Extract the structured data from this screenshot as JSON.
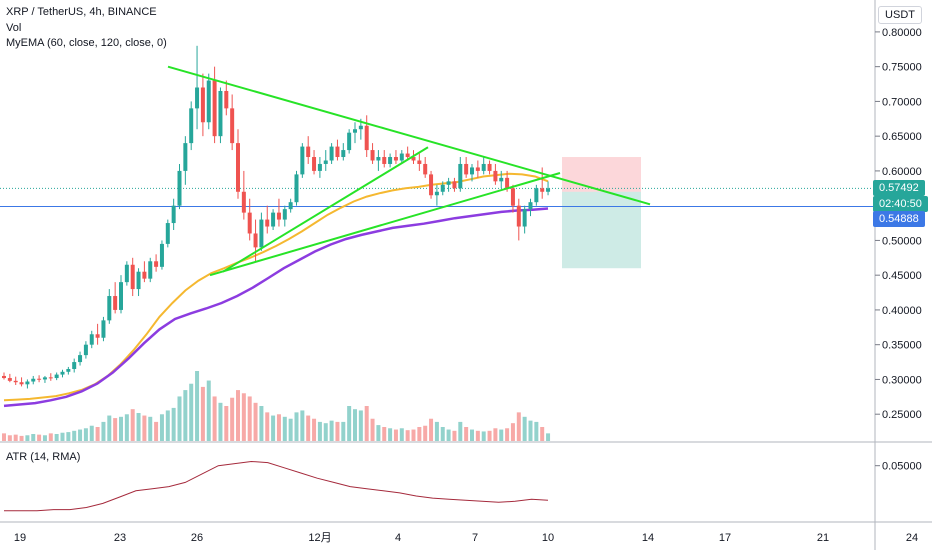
{
  "header": {
    "symbol_line": "XRP / TetherUS, 4h, BINANCE",
    "vol_label": "Vol",
    "ema_label": "MyEMA (60, close, 120, close, 0)",
    "atr_label": "ATR (14, RMA)",
    "currency": "USDT"
  },
  "price_tags": {
    "last": "0.57492",
    "countdown": "02:40:50",
    "level": "0.54888"
  },
  "colors": {
    "up": "#26a69a",
    "down": "#ef5350",
    "ema60": "#f5b830",
    "ema120": "#8c3ce0",
    "trend": "#27e327",
    "atr": "#a52a3c",
    "level_line": "#3c78e6"
  },
  "chart_data": [
    {
      "type": "candlestick",
      "title": "XRP / TetherUS, 4h, BINANCE",
      "x_ticks": [
        "19",
        "23",
        "26",
        "12月",
        "4",
        "7",
        "10",
        "14",
        "17",
        "21",
        "24"
      ],
      "y_ticks": [
        "0.80000",
        "0.75000",
        "0.70000",
        "0.65000",
        "0.60000",
        "0.55000",
        "0.50000",
        "0.45000",
        "0.40000",
        "0.35000",
        "0.30000",
        "0.25000"
      ],
      "ylim": [
        0.21,
        0.82
      ],
      "candles": [
        [
          0.305,
          0.31,
          0.3,
          0.302
        ],
        [
          0.302,
          0.308,
          0.296,
          0.298
        ],
        [
          0.298,
          0.304,
          0.292,
          0.296
        ],
        [
          0.296,
          0.303,
          0.29,
          0.293
        ],
        [
          0.293,
          0.3,
          0.287,
          0.297
        ],
        [
          0.297,
          0.305,
          0.293,
          0.301
        ],
        [
          0.301,
          0.306,
          0.296,
          0.3
        ],
        [
          0.3,
          0.305,
          0.295,
          0.303
        ],
        [
          0.303,
          0.309,
          0.298,
          0.302
        ],
        [
          0.302,
          0.31,
          0.299,
          0.307
        ],
        [
          0.307,
          0.314,
          0.303,
          0.311
        ],
        [
          0.311,
          0.318,
          0.307,
          0.315
        ],
        [
          0.315,
          0.33,
          0.31,
          0.325
        ],
        [
          0.325,
          0.34,
          0.32,
          0.335
        ],
        [
          0.335,
          0.355,
          0.33,
          0.35
        ],
        [
          0.35,
          0.37,
          0.345,
          0.365
        ],
        [
          0.365,
          0.38,
          0.35,
          0.36
        ],
        [
          0.36,
          0.39,
          0.355,
          0.385
        ],
        [
          0.385,
          0.43,
          0.38,
          0.42
        ],
        [
          0.42,
          0.44,
          0.395,
          0.4
        ],
        [
          0.4,
          0.45,
          0.395,
          0.44
        ],
        [
          0.44,
          0.47,
          0.435,
          0.465
        ],
        [
          0.465,
          0.475,
          0.42,
          0.43
        ],
        [
          0.43,
          0.46,
          0.42,
          0.455
        ],
        [
          0.455,
          0.47,
          0.44,
          0.445
        ],
        [
          0.445,
          0.475,
          0.44,
          0.47
        ],
        [
          0.47,
          0.48,
          0.455,
          0.462
        ],
        [
          0.462,
          0.5,
          0.458,
          0.495
        ],
        [
          0.495,
          0.53,
          0.49,
          0.525
        ],
        [
          0.525,
          0.56,
          0.515,
          0.55
        ],
        [
          0.55,
          0.61,
          0.545,
          0.6
        ],
        [
          0.6,
          0.65,
          0.58,
          0.64
        ],
        [
          0.64,
          0.7,
          0.63,
          0.69
        ],
        [
          0.69,
          0.78,
          0.66,
          0.72
        ],
        [
          0.72,
          0.74,
          0.65,
          0.67
        ],
        [
          0.67,
          0.74,
          0.66,
          0.73
        ],
        [
          0.73,
          0.75,
          0.64,
          0.65
        ],
        [
          0.65,
          0.72,
          0.64,
          0.715
        ],
        [
          0.715,
          0.73,
          0.68,
          0.69
        ],
        [
          0.69,
          0.71,
          0.63,
          0.64
        ],
        [
          0.64,
          0.66,
          0.56,
          0.57
        ],
        [
          0.57,
          0.6,
          0.53,
          0.54
        ],
        [
          0.54,
          0.56,
          0.5,
          0.51
        ],
        [
          0.51,
          0.53,
          0.47,
          0.49
        ],
        [
          0.49,
          0.54,
          0.485,
          0.53
        ],
        [
          0.53,
          0.55,
          0.51,
          0.52
        ],
        [
          0.52,
          0.545,
          0.515,
          0.54
        ],
        [
          0.54,
          0.56,
          0.52,
          0.53
        ],
        [
          0.53,
          0.55,
          0.52,
          0.545
        ],
        [
          0.545,
          0.56,
          0.54,
          0.555
        ],
        [
          0.555,
          0.6,
          0.55,
          0.595
        ],
        [
          0.595,
          0.64,
          0.59,
          0.635
        ],
        [
          0.635,
          0.65,
          0.61,
          0.62
        ],
        [
          0.62,
          0.63,
          0.595,
          0.6
        ],
        [
          0.6,
          0.62,
          0.59,
          0.61
        ],
        [
          0.61,
          0.63,
          0.6,
          0.615
        ],
        [
          0.615,
          0.64,
          0.61,
          0.635
        ],
        [
          0.635,
          0.645,
          0.615,
          0.62
        ],
        [
          0.62,
          0.64,
          0.615,
          0.63
        ],
        [
          0.63,
          0.66,
          0.625,
          0.655
        ],
        [
          0.655,
          0.67,
          0.64,
          0.66
        ],
        [
          0.66,
          0.675,
          0.645,
          0.665
        ],
        [
          0.665,
          0.68,
          0.62,
          0.63
        ],
        [
          0.63,
          0.64,
          0.61,
          0.615
        ],
        [
          0.615,
          0.63,
          0.6,
          0.62
        ],
        [
          0.62,
          0.63,
          0.605,
          0.61
        ],
        [
          0.61,
          0.625,
          0.605,
          0.62
        ],
        [
          0.62,
          0.63,
          0.61,
          0.615
        ],
        [
          0.615,
          0.63,
          0.61,
          0.625
        ],
        [
          0.625,
          0.635,
          0.615,
          0.62
        ],
        [
          0.62,
          0.63,
          0.61,
          0.615
        ],
        [
          0.615,
          0.625,
          0.6,
          0.61
        ],
        [
          0.61,
          0.62,
          0.59,
          0.595
        ],
        [
          0.595,
          0.6,
          0.56,
          0.565
        ],
        [
          0.565,
          0.58,
          0.55,
          0.57
        ],
        [
          0.57,
          0.585,
          0.565,
          0.58
        ],
        [
          0.58,
          0.59,
          0.57,
          0.585
        ],
        [
          0.585,
          0.59,
          0.57,
          0.575
        ],
        [
          0.575,
          0.62,
          0.57,
          0.61
        ],
        [
          0.61,
          0.62,
          0.59,
          0.595
        ],
        [
          0.595,
          0.61,
          0.585,
          0.605
        ],
        [
          0.605,
          0.615,
          0.59,
          0.6
        ],
        [
          0.6,
          0.62,
          0.595,
          0.61
        ],
        [
          0.61,
          0.615,
          0.595,
          0.6
        ],
        [
          0.6,
          0.61,
          0.58,
          0.585
        ],
        [
          0.585,
          0.6,
          0.575,
          0.59
        ],
        [
          0.59,
          0.6,
          0.57,
          0.575
        ],
        [
          0.575,
          0.58,
          0.54,
          0.55
        ],
        [
          0.55,
          0.56,
          0.5,
          0.52
        ],
        [
          0.52,
          0.55,
          0.51,
          0.545
        ],
        [
          0.545,
          0.56,
          0.535,
          0.555
        ],
        [
          0.555,
          0.58,
          0.55,
          0.575
        ],
        [
          0.575,
          0.605,
          0.56,
          0.57
        ],
        [
          0.57,
          0.585,
          0.565,
          0.575
        ]
      ],
      "volumes": [
        12,
        9,
        10,
        8,
        9,
        11,
        10,
        9,
        12,
        11,
        13,
        14,
        16,
        18,
        20,
        24,
        22,
        30,
        40,
        36,
        38,
        42,
        50,
        44,
        40,
        38,
        30,
        42,
        48,
        52,
        70,
        80,
        90,
        110,
        85,
        95,
        70,
        60,
        55,
        68,
        80,
        75,
        70,
        60,
        55,
        45,
        40,
        42,
        38,
        35,
        45,
        48,
        40,
        35,
        30,
        28,
        32,
        30,
        30,
        55,
        50,
        48,
        55,
        35,
        25,
        22,
        20,
        18,
        20,
        17,
        18,
        22,
        24,
        35,
        30,
        22,
        18,
        16,
        30,
        22,
        18,
        16,
        15,
        16,
        20,
        18,
        20,
        28,
        45,
        38,
        32,
        30,
        22,
        12
      ],
      "series": [
        {
          "name": "MyEMA 60",
          "values": [
            0.27,
            0.271,
            0.272,
            0.274,
            0.276,
            0.28,
            0.285,
            0.293,
            0.305,
            0.322,
            0.342,
            0.365,
            0.39,
            0.41,
            0.428,
            0.442,
            0.453,
            0.46,
            0.468,
            0.475,
            0.483,
            0.492,
            0.502,
            0.513,
            0.525,
            0.537,
            0.547,
            0.556,
            0.563,
            0.568,
            0.572,
            0.575,
            0.577,
            0.58,
            0.582,
            0.584,
            0.588,
            0.592,
            0.594,
            0.596,
            0.595,
            0.592,
            0.585
          ]
        },
        {
          "name": "MyEMA 120",
          "values": [
            0.262,
            0.264,
            0.266,
            0.27,
            0.275,
            0.283,
            0.294,
            0.31,
            0.33,
            0.352,
            0.372,
            0.387,
            0.395,
            0.402,
            0.41,
            0.42,
            0.432,
            0.446,
            0.46,
            0.472,
            0.484,
            0.494,
            0.502,
            0.508,
            0.513,
            0.518,
            0.521,
            0.524,
            0.528,
            0.532,
            0.535,
            0.538,
            0.541,
            0.543,
            0.544,
            0.546
          ]
        },
        {
          "name": "ATR (14, RMA)",
          "y_tick": "0.05000",
          "values": [
            0.007,
            0.007,
            0.007,
            0.008,
            0.008,
            0.01,
            0.014,
            0.02,
            0.026,
            0.028,
            0.03,
            0.034,
            0.042,
            0.05,
            0.052,
            0.054,
            0.053,
            0.048,
            0.043,
            0.038,
            0.034,
            0.03,
            0.028,
            0.026,
            0.024,
            0.021,
            0.019,
            0.018,
            0.017,
            0.016,
            0.015,
            0.016,
            0.018,
            0.017
          ]
        }
      ],
      "trendlines": [
        {
          "from": [
            0.75
          ],
          "to": [
            0.574
          ]
        },
        {
          "from": [
            0.45
          ],
          "to": [
            0.574
          ]
        },
        {
          "from": [
            0.455
          ],
          "to": [
            0.63
          ]
        }
      ],
      "level": 0.54888,
      "last_price": 0.57492,
      "position": {
        "entry": 0.57,
        "stop": 0.62,
        "target": 0.46
      }
    }
  ]
}
